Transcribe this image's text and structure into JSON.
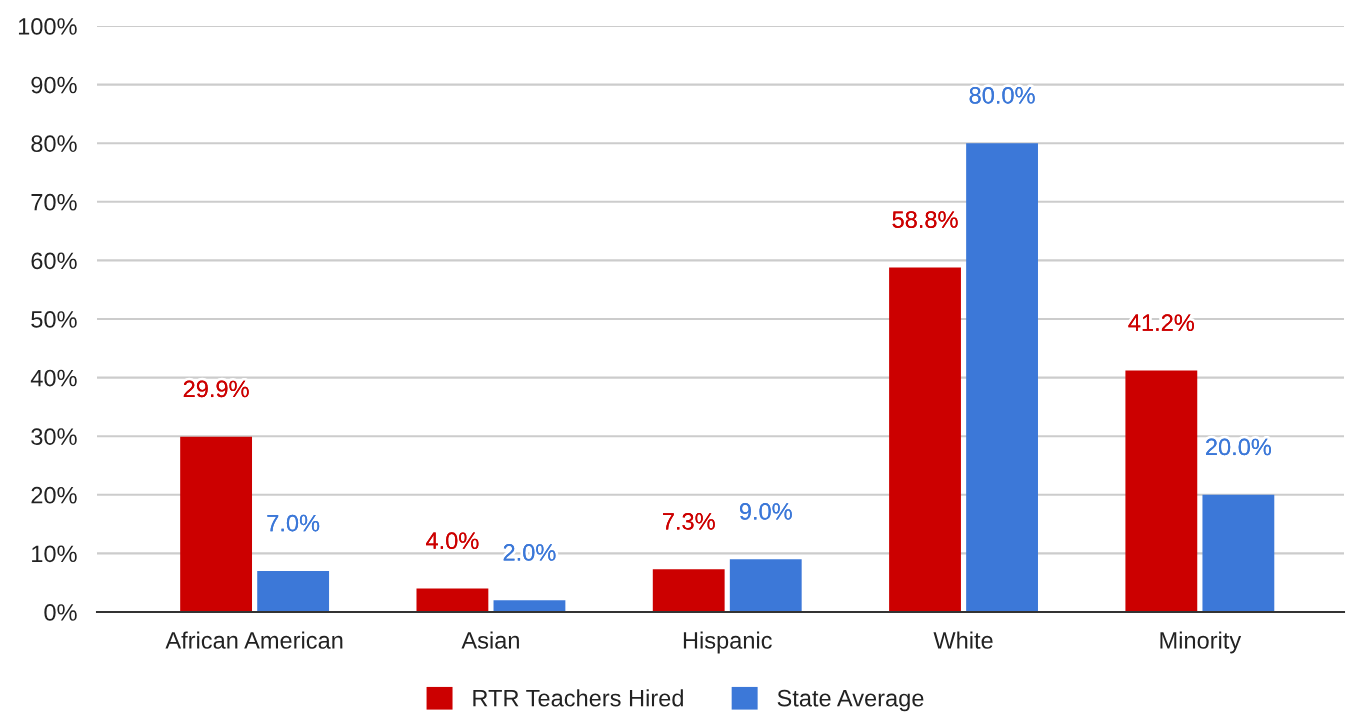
{
  "chart_data": {
    "type": "bar",
    "categories": [
      "African American",
      "Asian",
      "Hispanic",
      "White",
      "Minority"
    ],
    "series": [
      {
        "name": "RTR Teachers Hired",
        "color": "#cc0000",
        "values": [
          29.9,
          4.0,
          7.3,
          58.8,
          41.2
        ],
        "value_labels": [
          "29.9%",
          "4.0%",
          "7.3%",
          "58.8%",
          "41.2%"
        ]
      },
      {
        "name": "State Average",
        "color": "#3c78d8",
        "values": [
          7.0,
          2.0,
          9.0,
          80.0,
          20.0
        ],
        "value_labels": [
          "7.0%",
          "2.0%",
          "9.0%",
          "80.0%",
          "20.0%"
        ]
      }
    ],
    "ylim": [
      0,
      100
    ],
    "yticks": [
      {
        "value": 0,
        "label": "0%"
      },
      {
        "value": 10,
        "label": "10%"
      },
      {
        "value": 20,
        "label": "20%"
      },
      {
        "value": 30,
        "label": "30%"
      },
      {
        "value": 40,
        "label": "40%"
      },
      {
        "value": 50,
        "label": "50%"
      },
      {
        "value": 60,
        "label": "60%"
      },
      {
        "value": 70,
        "label": "70%"
      },
      {
        "value": 80,
        "label": "80%"
      },
      {
        "value": 90,
        "label": "90%"
      },
      {
        "value": 100,
        "label": "100%"
      }
    ],
    "grid": "y",
    "legend": "bottom"
  }
}
